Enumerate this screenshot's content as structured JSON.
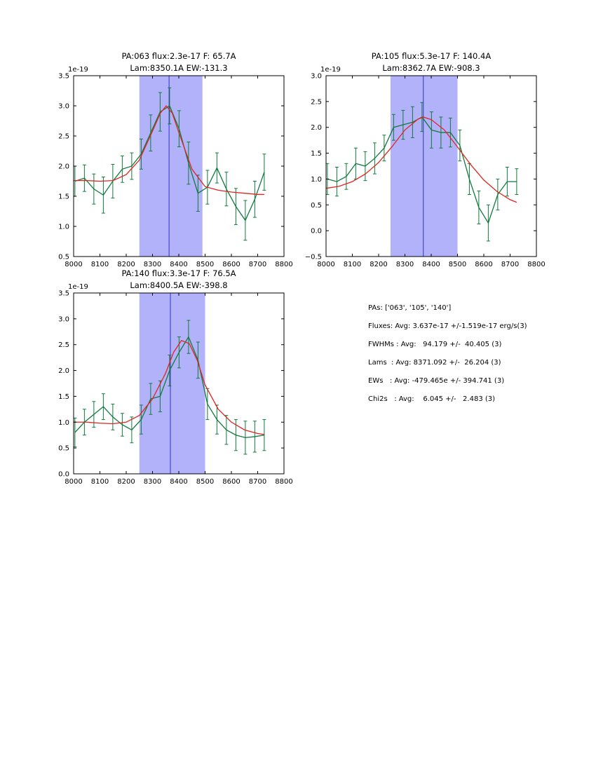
{
  "stats": {
    "lines": [
      "PAs: ['063', '105', '140']",
      "Fluxes: Avg: 3.637e-17 +/-1.519e-17 erg/s(3)",
      "FWHMs : Avg:   94.179 +/-  40.405 (3)",
      "Lams  : Avg: 8371.092 +/-  26.204 (3)",
      "EWs   : Avg: -479.465e +/- 394.741 (3)",
      "Chi2s   : Avg:    6.045 +/-   2.483 (3)"
    ]
  },
  "chart_data": [
    {
      "type": "line",
      "title1": "PA:063 flux:2.3e-17 F: 65.7A",
      "title2": "Lam:8350.1A EW:-131.3",
      "offset_label": "1e-19",
      "xlim": [
        8000,
        8800
      ],
      "ylim": [
        0.5,
        3.5
      ],
      "xticks": [
        8000,
        8100,
        8200,
        8300,
        8400,
        8500,
        8600,
        8700,
        8800
      ],
      "yticks": [
        0.5,
        1.0,
        1.5,
        2.0,
        2.5,
        3.0,
        3.5
      ],
      "span": [
        8250,
        8490
      ],
      "vline": 8363,
      "colors": {
        "data": "#117a3d",
        "fit": "#e02420",
        "span": "#b2b2fa",
        "vline": "#3333cc"
      },
      "x": [
        8005,
        8041,
        8077,
        8113,
        8149,
        8185,
        8221,
        8257,
        8293,
        8329,
        8365,
        8401,
        8437,
        8473,
        8509,
        8545,
        8581,
        8617,
        8653,
        8689,
        8725
      ],
      "y": [
        1.75,
        1.8,
        1.62,
        1.52,
        1.75,
        1.95,
        2.0,
        2.2,
        2.55,
        2.9,
        3.0,
        2.62,
        2.05,
        1.55,
        1.65,
        1.97,
        1.62,
        1.33,
        1.1,
        1.45,
        1.9
      ],
      "yerr": [
        0.25,
        0.22,
        0.25,
        0.3,
        0.28,
        0.22,
        0.22,
        0.25,
        0.3,
        0.32,
        0.3,
        0.3,
        0.35,
        0.3,
        0.28,
        0.25,
        0.28,
        0.3,
        0.33,
        0.3,
        0.3
      ],
      "fit_x": [
        8000,
        8050,
        8100,
        8150,
        8200,
        8250,
        8300,
        8330,
        8352,
        8375,
        8400,
        8450,
        8500,
        8550,
        8600,
        8650,
        8700,
        8725
      ],
      "fit_y": [
        1.76,
        1.76,
        1.75,
        1.76,
        1.86,
        2.1,
        2.58,
        2.88,
        3.0,
        2.88,
        2.56,
        1.95,
        1.66,
        1.6,
        1.57,
        1.55,
        1.53,
        1.53
      ]
    },
    {
      "type": "line",
      "title1": "PA:105 flux:5.3e-17 F: 140.4A",
      "title2": "Lam:8362.7A EW:-908.3",
      "offset_label": "1e-19",
      "xlim": [
        8000,
        8800
      ],
      "ylim": [
        -0.5,
        3.0
      ],
      "xticks": [
        8000,
        8100,
        8200,
        8300,
        8400,
        8500,
        8600,
        8700,
        8800
      ],
      "yticks": [
        -0.5,
        0.0,
        0.5,
        1.0,
        1.5,
        2.0,
        2.5,
        3.0
      ],
      "span": [
        8245,
        8500
      ],
      "vline": 8370,
      "colors": {
        "data": "#117a3d",
        "fit": "#e02420",
        "span": "#b2b2fa",
        "vline": "#3333cc"
      },
      "x": [
        8005,
        8041,
        8077,
        8113,
        8149,
        8185,
        8221,
        8257,
        8293,
        8329,
        8365,
        8401,
        8437,
        8473,
        8509,
        8545,
        8581,
        8617,
        8653,
        8689,
        8725
      ],
      "y": [
        1.0,
        0.95,
        1.05,
        1.3,
        1.25,
        1.4,
        1.6,
        2.0,
        2.05,
        2.1,
        2.2,
        1.95,
        1.9,
        1.9,
        1.65,
        1.0,
        0.45,
        0.15,
        0.7,
        0.95,
        0.95
      ],
      "yerr": [
        0.3,
        0.28,
        0.25,
        0.3,
        0.28,
        0.3,
        0.25,
        0.25,
        0.28,
        0.3,
        0.28,
        0.35,
        0.3,
        0.28,
        0.3,
        0.3,
        0.32,
        0.35,
        0.3,
        0.28,
        0.25
      ],
      "fit_x": [
        8000,
        8050,
        8100,
        8150,
        8200,
        8250,
        8300,
        8350,
        8370,
        8400,
        8450,
        8500,
        8550,
        8600,
        8650,
        8700,
        8725
      ],
      "fit_y": [
        0.82,
        0.86,
        0.95,
        1.1,
        1.32,
        1.62,
        1.95,
        2.16,
        2.2,
        2.15,
        1.95,
        1.62,
        1.28,
        0.98,
        0.76,
        0.6,
        0.55
      ]
    },
    {
      "type": "line",
      "title1": "PA:140 flux:3.3e-17 F: 76.5A",
      "title2": "Lam:8400.5A EW:-398.8",
      "offset_label": "1e-19",
      "xlim": [
        8000,
        8800
      ],
      "ylim": [
        0.0,
        3.5
      ],
      "xticks": [
        8000,
        8100,
        8200,
        8300,
        8400,
        8500,
        8600,
        8700,
        8800
      ],
      "yticks": [
        0.0,
        0.5,
        1.0,
        1.5,
        2.0,
        2.5,
        3.0,
        3.5
      ],
      "span": [
        8250,
        8500
      ],
      "vline": 8368,
      "colors": {
        "data": "#117a3d",
        "fit": "#e02420",
        "span": "#b2b2fa",
        "vline": "#3333cc"
      },
      "x": [
        8005,
        8041,
        8077,
        8113,
        8149,
        8185,
        8221,
        8257,
        8293,
        8329,
        8365,
        8401,
        8437,
        8473,
        8509,
        8545,
        8581,
        8617,
        8653,
        8689,
        8725
      ],
      "y": [
        0.8,
        1.0,
        1.15,
        1.3,
        1.1,
        0.95,
        0.85,
        1.05,
        1.45,
        1.5,
        2.0,
        2.35,
        2.65,
        2.2,
        1.35,
        1.05,
        0.85,
        0.75,
        0.7,
        0.72,
        0.75
      ],
      "yerr": [
        0.28,
        0.25,
        0.25,
        0.25,
        0.25,
        0.22,
        0.25,
        0.28,
        0.3,
        0.3,
        0.3,
        0.3,
        0.32,
        0.35,
        0.3,
        0.28,
        0.28,
        0.3,
        0.32,
        0.3,
        0.3
      ],
      "fit_x": [
        8000,
        8050,
        8100,
        8150,
        8200,
        8250,
        8300,
        8350,
        8380,
        8410,
        8440,
        8470,
        8500,
        8550,
        8600,
        8650,
        8700,
        8725
      ],
      "fit_y": [
        1.0,
        1.0,
        0.98,
        0.97,
        1.0,
        1.13,
        1.45,
        1.95,
        2.35,
        2.58,
        2.52,
        2.2,
        1.72,
        1.25,
        1.0,
        0.85,
        0.78,
        0.76
      ]
    }
  ]
}
